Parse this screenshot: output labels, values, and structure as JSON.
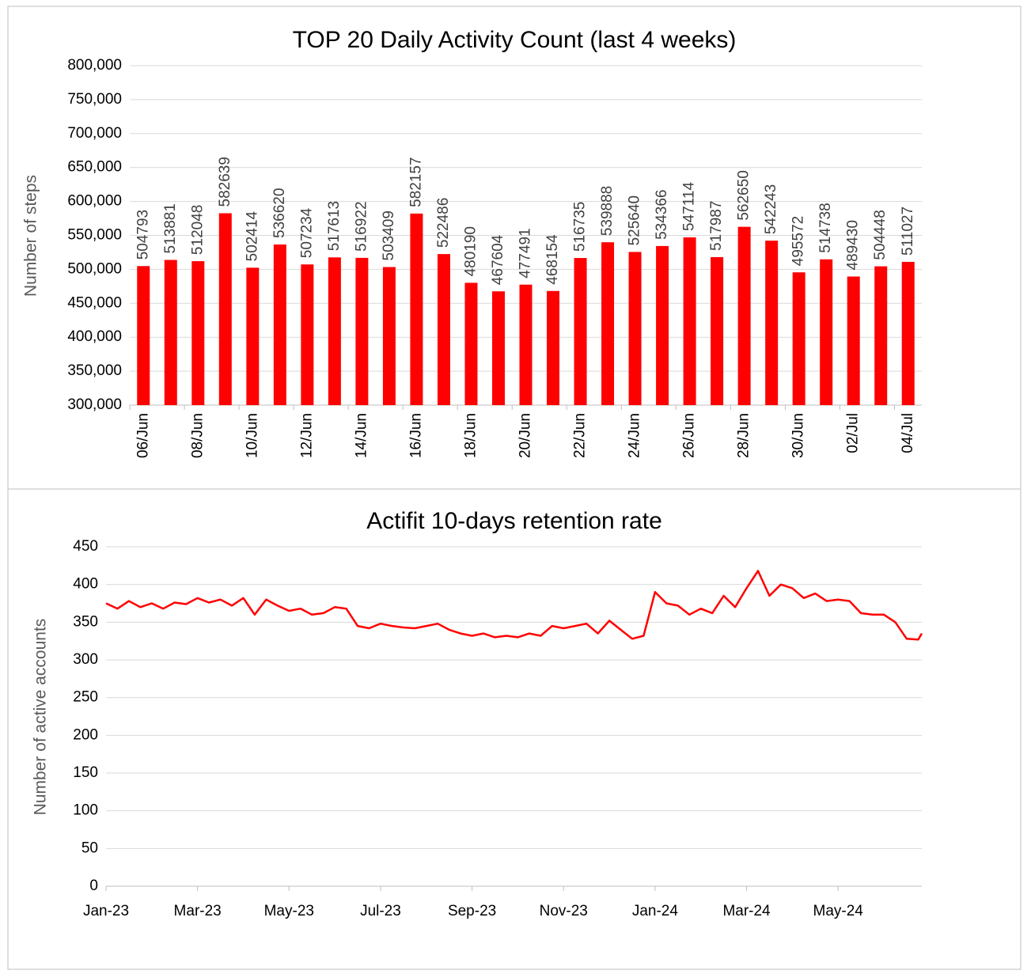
{
  "chart_data": [
    {
      "type": "bar",
      "title": "TOP 20 Daily Activity Count (last 4 weeks)",
      "ylabel": "Number of steps",
      "categories": [
        "06/Jun",
        null,
        "08/Jun",
        null,
        "10/Jun",
        null,
        "12/Jun",
        null,
        "14/Jun",
        null,
        "16/Jun",
        null,
        "18/Jun",
        null,
        "20/Jun",
        null,
        "22/Jun",
        null,
        "24/Jun",
        null,
        "26/Jun",
        null,
        "28/Jun",
        null,
        "30/Jun",
        null,
        "02/Jul",
        null,
        "04/Jul"
      ],
      "values": [
        504793,
        513881,
        512048,
        582639,
        502414,
        536620,
        507234,
        517613,
        516922,
        503409,
        582157,
        522486,
        480190,
        467604,
        477491,
        468154,
        516735,
        539888,
        525640,
        534366,
        547114,
        517987,
        562650,
        542243,
        495572,
        514738,
        489430,
        504448,
        511027
      ],
      "color": "#ff0000",
      "grid": true,
      "ylim": [
        300000,
        800000
      ],
      "yticks": [
        {
          "value": 300000,
          "label": "300,000"
        },
        {
          "value": 350000,
          "label": "350,000"
        },
        {
          "value": 400000,
          "label": "400,000"
        },
        {
          "value": 450000,
          "label": "450,000"
        },
        {
          "value": 500000,
          "label": "500,000"
        },
        {
          "value": 550000,
          "label": "550,000"
        },
        {
          "value": 600000,
          "label": "600,000"
        },
        {
          "value": 650000,
          "label": "650,000"
        },
        {
          "value": 700000,
          "label": "700,000"
        },
        {
          "value": 750000,
          "label": "750,000"
        },
        {
          "value": 800000,
          "label": "800,000"
        }
      ]
    },
    {
      "type": "line",
      "title": "Actifit 10-days retention rate",
      "ylabel": "Number of active accounts",
      "x": [
        0,
        0.25,
        0.5,
        0.75,
        1,
        1.25,
        1.5,
        1.75,
        2,
        2.25,
        2.5,
        2.75,
        3,
        3.25,
        3.5,
        3.75,
        4,
        4.25,
        4.5,
        4.75,
        5,
        5.25,
        5.5,
        5.75,
        6,
        6.25,
        6.5,
        6.75,
        7,
        7.25,
        7.5,
        7.75,
        8,
        8.25,
        8.5,
        8.75,
        9,
        9.25,
        9.5,
        9.75,
        10,
        10.25,
        10.5,
        10.75,
        11,
        11.25,
        11.5,
        11.75,
        12,
        12.25,
        12.5,
        12.75,
        13,
        13.25,
        13.5,
        13.75,
        14,
        14.25,
        14.5,
        14.75,
        15,
        15.25,
        15.5,
        15.75,
        16,
        16.25,
        16.5,
        16.75,
        17,
        17.25,
        17.5,
        17.75,
        17.83
      ],
      "values": [
        375,
        368,
        378,
        370,
        375,
        368,
        376,
        374,
        382,
        376,
        380,
        372,
        382,
        360,
        380,
        372,
        365,
        368,
        360,
        362,
        370,
        368,
        345,
        342,
        348,
        345,
        343,
        342,
        345,
        348,
        340,
        335,
        332,
        335,
        330,
        332,
        330,
        335,
        332,
        345,
        342,
        345,
        348,
        335,
        352,
        340,
        328,
        332,
        390,
        375,
        372,
        360,
        368,
        362,
        385,
        370,
        395,
        418,
        385,
        400,
        395,
        382,
        388,
        378,
        380,
        378,
        362,
        360,
        360,
        350,
        328,
        327,
        335
      ],
      "color": "#ff0000",
      "grid": true,
      "xlim": [
        0,
        17.83
      ],
      "xticks": [
        {
          "value": 0,
          "label": "Jan-23"
        },
        {
          "value": 2,
          "label": "Mar-23"
        },
        {
          "value": 4,
          "label": "May-23"
        },
        {
          "value": 6,
          "label": "Jul-23"
        },
        {
          "value": 8,
          "label": "Sep-23"
        },
        {
          "value": 10,
          "label": "Nov-23"
        },
        {
          "value": 12,
          "label": "Jan-24"
        },
        {
          "value": 14,
          "label": "Mar-24"
        },
        {
          "value": 16,
          "label": "May-24"
        }
      ],
      "ylim": [
        0,
        450
      ],
      "yticks": [
        0,
        50,
        100,
        150,
        200,
        250,
        300,
        350,
        400,
        450
      ]
    }
  ]
}
